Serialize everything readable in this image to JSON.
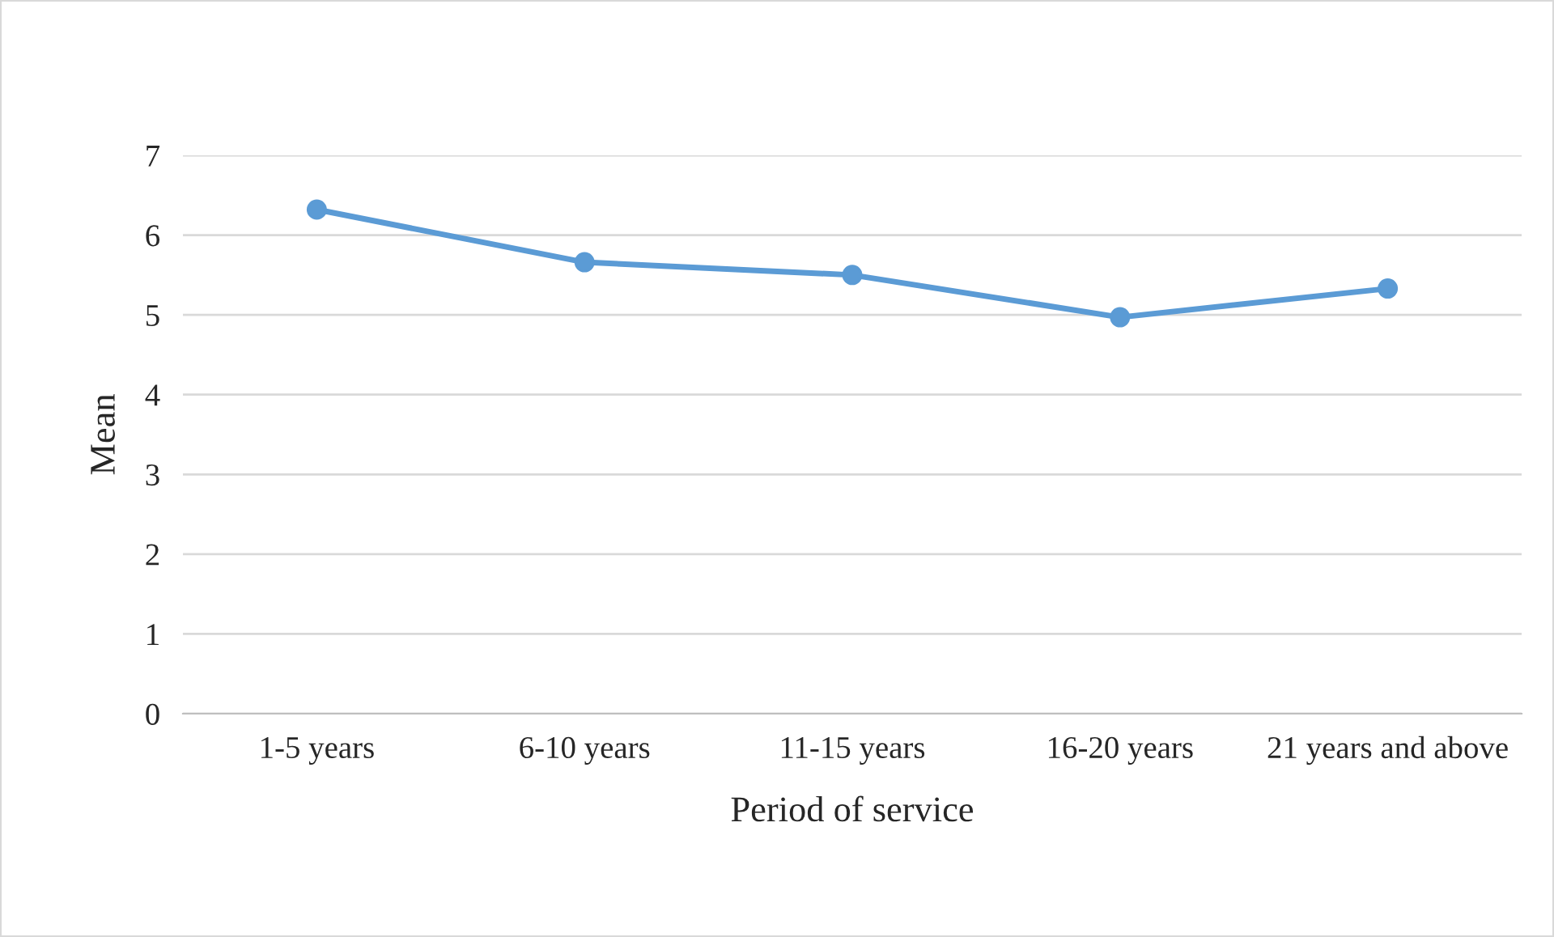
{
  "chart_data": {
    "type": "line",
    "xlabel": "Period of service",
    "ylabel": "Mean",
    "categories": [
      "1-5 years",
      "6-10 years",
      "11-15 years",
      "16-20 years",
      "21 years and above"
    ],
    "series": [
      {
        "color": "#5b9bd5",
        "values": [
          6.32,
          5.66,
          5.5,
          4.97,
          5.33
        ]
      }
    ],
    "ylim": [
      0,
      7
    ],
    "yticks": [
      0,
      1,
      2,
      3,
      4,
      5,
      6,
      7
    ],
    "grid": "y",
    "marker": "circle",
    "line_style": "solid"
  }
}
